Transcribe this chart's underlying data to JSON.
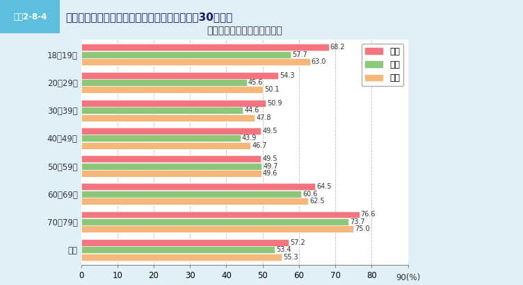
{
  "title": "世代別・性別スポーツ実施率",
  "header_label": "図表2-8-4",
  "header_title": "世代別週１日以上スポーツ実施率の比較（平成30年度）",
  "categories": [
    "18～19歳",
    "20～29歳",
    "30～39歳",
    "40～49歳",
    "50～59歳",
    "60～69歳",
    "70～79歳",
    "全体"
  ],
  "series": {
    "男性": [
      68.2,
      54.3,
      50.9,
      49.5,
      49.5,
      64.5,
      76.6,
      57.2
    ],
    "女性": [
      57.7,
      45.6,
      44.6,
      43.9,
      49.7,
      60.6,
      73.7,
      53.4
    ],
    "全体": [
      63.0,
      50.1,
      47.8,
      46.7,
      49.6,
      62.5,
      75.0,
      55.3
    ]
  },
  "colors": {
    "男性": "#F47480",
    "女性": "#8DC87A",
    "全体": "#F5B87A"
  },
  "xlim": [
    0,
    90
  ],
  "xticks": [
    0,
    10,
    20,
    30,
    40,
    50,
    60,
    70,
    80,
    90
  ],
  "bar_height": 0.26,
  "background_color": "#DFF0F8",
  "plot_bg_color": "#FFFFFF",
  "grid_color": "#AAAAAA",
  "value_fontsize": 7.0,
  "axis_fontsize": 8.5,
  "legend_fontsize": 9,
  "title_fontsize": 10,
  "header_box_color": "#5BBFDD",
  "header_bg_color": "#FFFFFF"
}
